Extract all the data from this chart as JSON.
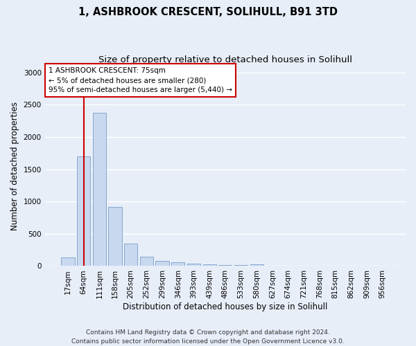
{
  "title_line1": "1, ASHBROOK CRESCENT, SOLIHULL, B91 3TD",
  "title_line2": "Size of property relative to detached houses in Solihull",
  "xlabel": "Distribution of detached houses by size in Solihull",
  "ylabel": "Number of detached properties",
  "categories": [
    "17sqm",
    "64sqm",
    "111sqm",
    "158sqm",
    "205sqm",
    "252sqm",
    "299sqm",
    "346sqm",
    "393sqm",
    "439sqm",
    "486sqm",
    "533sqm",
    "580sqm",
    "627sqm",
    "674sqm",
    "721sqm",
    "768sqm",
    "815sqm",
    "862sqm",
    "909sqm",
    "956sqm"
  ],
  "values": [
    130,
    1700,
    2380,
    920,
    350,
    145,
    80,
    55,
    40,
    25,
    20,
    15,
    25,
    0,
    0,
    0,
    0,
    0,
    0,
    0,
    0
  ],
  "bar_color": "#c8d8ee",
  "bar_edge_color": "#6090c0",
  "vline_color": "#cc0000",
  "vline_x": 1.0,
  "annotation_text": "1 ASHBROOK CRESCENT: 75sqm\n← 5% of detached houses are smaller (280)\n95% of semi-detached houses are larger (5,440) →",
  "annotation_box_facecolor": "#ffffff",
  "annotation_box_edgecolor": "#cc0000",
  "ylim": [
    0,
    3100
  ],
  "yticks": [
    0,
    500,
    1000,
    1500,
    2000,
    2500,
    3000
  ],
  "footer_text": "Contains HM Land Registry data © Crown copyright and database right 2024.\nContains public sector information licensed under the Open Government Licence v3.0.",
  "background_color": "#e8eef8",
  "grid_color": "#ffffff",
  "title_fontsize": 10.5,
  "subtitle_fontsize": 9.5,
  "axis_label_fontsize": 8.5,
  "tick_fontsize": 7.5,
  "annotation_fontsize": 7.5,
  "footer_fontsize": 6.5
}
